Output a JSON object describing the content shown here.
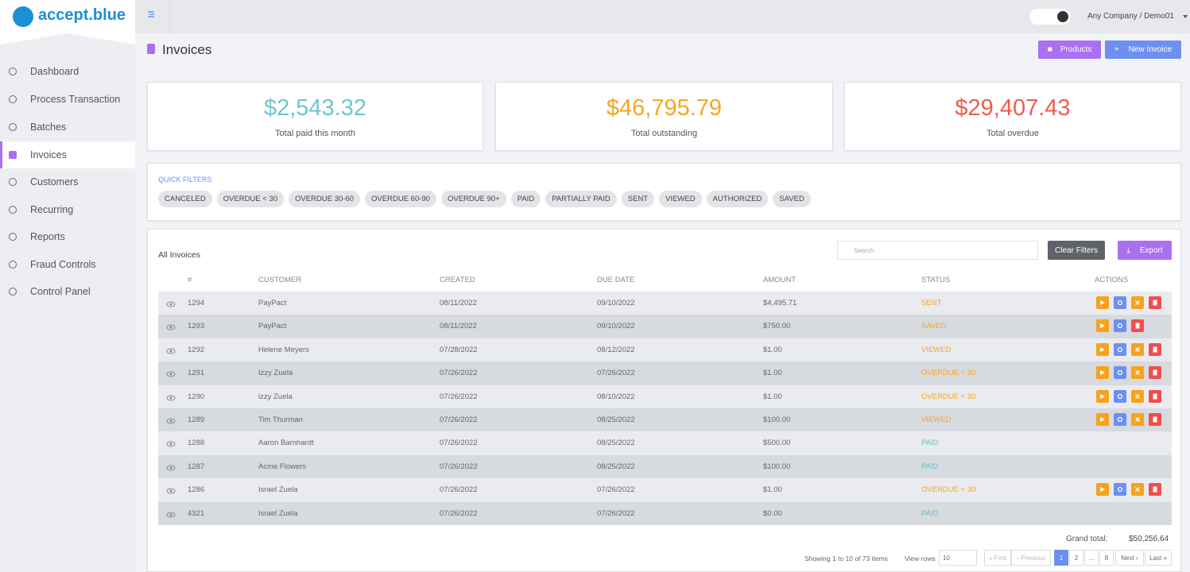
{
  "brand": "accept.blue",
  "topbar": {
    "account": "Any Company / Demo01"
  },
  "nav": [
    "Dashboard",
    "Process Transaction",
    "Batches",
    "Invoices",
    "Customers",
    "Recurring",
    "Reports",
    "Fraud Controls",
    "Control Panel"
  ],
  "page_title": "Invoices",
  "buttons": {
    "products": "Products",
    "new_invoice": "New Invoice"
  },
  "stats": [
    {
      "value": "$2,543.32",
      "label": "Total paid this month",
      "color": "#6fc6cf"
    },
    {
      "value": "$46,795.79",
      "label": "Total outstanding",
      "color": "#f5a623"
    },
    {
      "value": "$29,407.43",
      "label": "Total overdue",
      "color": "#ef5b4c"
    }
  ],
  "quick_filters": {
    "title": "QUICK FILTERS",
    "chips": [
      "CANCELED",
      "OVERDUE < 30",
      "OVERDUE 30-60",
      "OVERDUE 60-90",
      "OVERDUE 90+",
      "PAID",
      "PARTIALLY PAID",
      "SENT",
      "VIEWED",
      "AUTHORIZED",
      "SAVED"
    ]
  },
  "table": {
    "title": "All Invoices",
    "search_placeholder": "Search",
    "clear_filters": "Clear Filters",
    "export": "Export",
    "columns": [
      "#",
      "CUSTOMER",
      "CREATED",
      "DUE DATE",
      "AMOUNT",
      "STATUS",
      "ACTIONS"
    ],
    "rows": [
      {
        "id": "1294",
        "customer": "PayPact",
        "created": "08/11/2022",
        "due": "09/10/2022",
        "amount": "$4,495.71",
        "status": "SENT",
        "status_color": "#f5a623"
      },
      {
        "id": "1293",
        "customer": "PayPact",
        "created": "08/11/2022",
        "due": "09/10/2022",
        "amount": "$750.00",
        "status": "SAVED",
        "status_color": "#f5a623"
      },
      {
        "id": "1292",
        "customer": "Helene Meyers",
        "created": "07/28/2022",
        "due": "08/12/2022",
        "amount": "$1.00",
        "status": "VIEWED",
        "status_color": "#f5a623"
      },
      {
        "id": "1291",
        "customer": "Izzy Zuela",
        "created": "07/26/2022",
        "due": "07/26/2022",
        "amount": "$1.00",
        "status": "OVERDUE < 30",
        "status_color": "#f5a623"
      },
      {
        "id": "1290",
        "customer": "izzy Zuela",
        "created": "07/26/2022",
        "due": "08/10/2022",
        "amount": "$1.00",
        "status": "OVERDUE < 30",
        "status_color": "#f5a623"
      },
      {
        "id": "1289",
        "customer": "Tim Thurman",
        "created": "07/26/2022",
        "due": "08/25/2022",
        "amount": "$100.00",
        "status": "VIEWED",
        "status_color": "#f5a623"
      },
      {
        "id": "1288",
        "customer": "Aaron Barnhardt",
        "created": "07/26/2022",
        "due": "08/25/2022",
        "amount": "$500.00",
        "status": "PAID",
        "status_color": "#5cc3cc"
      },
      {
        "id": "1287",
        "customer": "Acme Flowers",
        "created": "07/26/2022",
        "due": "08/25/2022",
        "amount": "$100.00",
        "status": "PAID",
        "status_color": "#5cc3cc"
      },
      {
        "id": "1286",
        "customer": "Israel Zuela",
        "created": "07/26/2022",
        "due": "07/26/2022",
        "amount": "$1.00",
        "status": "OVERDUE < 30",
        "status_color": "#f5a623"
      },
      {
        "id": "4321",
        "customer": "Israel Zuela",
        "created": "07/26/2022",
        "due": "07/26/2022",
        "amount": "$0.00",
        "status": "PAID",
        "status_color": "#5cc3cc"
      }
    ],
    "grand_total_label": "Grand total:",
    "grand_total": "$50,256.64"
  },
  "pagination": {
    "summary": "Showing 1 to 10 of 73 items",
    "view_rows_label": "View rows",
    "view_rows": "10",
    "first": "« First",
    "previous": "‹ Previous",
    "pages": [
      "1",
      "2",
      "...",
      "8"
    ],
    "next": "Next ›",
    "last": "Last »"
  }
}
